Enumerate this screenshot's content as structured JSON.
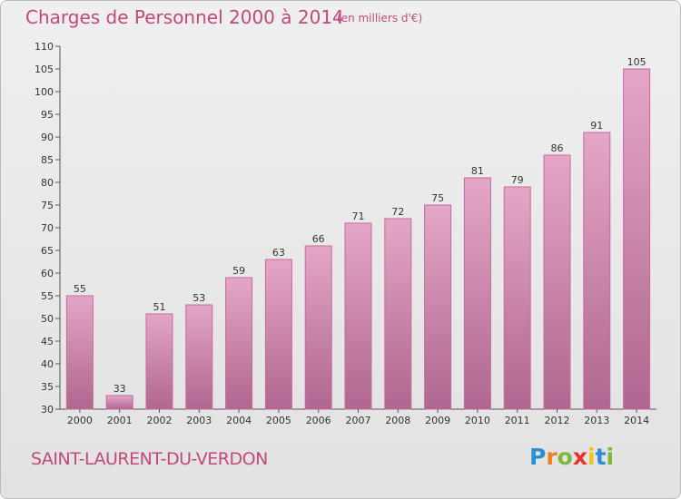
{
  "header": {
    "title": "Charges de Personnel 2000 à 2014",
    "subtitle": "(en milliers d'€)"
  },
  "footer": {
    "commune": "SAINT-LAURENT-DU-VERDON",
    "logo": [
      "P",
      "r",
      "o",
      "x",
      "i",
      "t",
      "i"
    ],
    "logo_colors": [
      "#2c8fd6",
      "#f07d1e",
      "#7db83a",
      "#e6332a",
      "#f2c21b",
      "#2c8fd6",
      "#7db83a"
    ]
  },
  "colors": {
    "bar": "#c0497c",
    "accent": "#c0497c"
  },
  "chart_data": {
    "type": "bar",
    "categories": [
      "2000",
      "2001",
      "2002",
      "2003",
      "2004",
      "2005",
      "2006",
      "2007",
      "2008",
      "2009",
      "2010",
      "2011",
      "2012",
      "2013",
      "2014"
    ],
    "values": [
      55,
      33,
      51,
      53,
      59,
      63,
      66,
      71,
      72,
      75,
      81,
      79,
      86,
      91,
      105
    ],
    "ylim": [
      30,
      110
    ],
    "yticks": [
      30,
      35,
      40,
      45,
      50,
      55,
      60,
      65,
      70,
      75,
      80,
      85,
      90,
      95,
      100,
      105,
      110
    ],
    "grid": false
  }
}
